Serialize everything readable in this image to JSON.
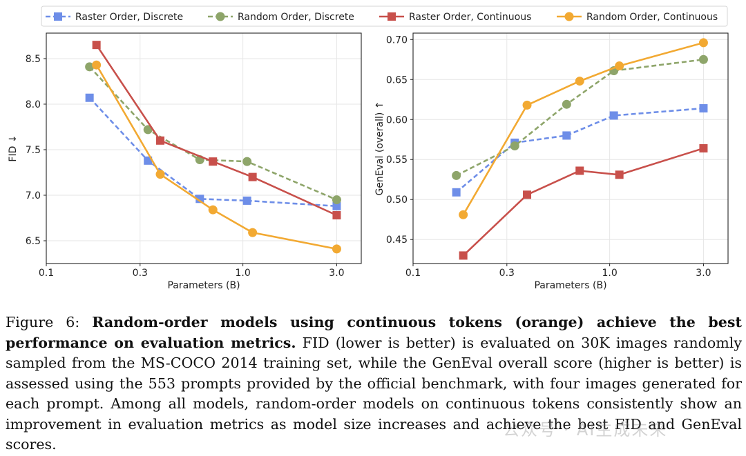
{
  "chart_data": [
    {
      "type": "line",
      "xscale": "log",
      "xlabel": "Parameters (B)",
      "ylabel": "FID ↓",
      "xlim": [
        0.1,
        4.0
      ],
      "ylim": [
        6.25,
        8.78
      ],
      "xticks": [
        0.1,
        0.3,
        1.0,
        3.0
      ],
      "xtick_labels": [
        "0.1",
        "0.3",
        "1.0",
        "3.0"
      ],
      "yticks": [
        6.5,
        7.0,
        7.5,
        8.0,
        8.5
      ],
      "ytick_labels": [
        "6.5",
        "7.0",
        "7.5",
        "8.0",
        "8.5"
      ],
      "grid": true,
      "series": [
        {
          "name": "Raster Order, Discrete",
          "color": "#6e8ee8",
          "dash": "dashed",
          "marker": "square",
          "x": [
            0.166,
            0.329,
            0.604,
            1.05,
            3.0
          ],
          "y": [
            8.07,
            7.38,
            6.96,
            6.94,
            6.88
          ]
        },
        {
          "name": "Random Order, Discrete",
          "color": "#8ea56a",
          "dash": "dashed",
          "marker": "circle",
          "x": [
            0.166,
            0.329,
            0.604,
            1.05,
            3.0
          ],
          "y": [
            8.41,
            7.72,
            7.39,
            7.37,
            6.95
          ]
        },
        {
          "name": "Raster Order, Continuous",
          "color": "#c8504b",
          "dash": "solid",
          "marker": "square",
          "x": [
            0.18,
            0.38,
            0.704,
            1.12,
            3.0
          ],
          "y": [
            8.65,
            7.6,
            7.37,
            7.2,
            6.78
          ]
        },
        {
          "name": "Random Order, Continuous",
          "color": "#f2a932",
          "dash": "solid",
          "marker": "circle",
          "x": [
            0.18,
            0.38,
            0.704,
            1.12,
            3.0
          ],
          "y": [
            8.43,
            7.23,
            6.84,
            6.59,
            6.41
          ]
        }
      ]
    },
    {
      "type": "line",
      "xscale": "log",
      "xlabel": "Parameters (B)",
      "ylabel": "GenEval (overall) ↑",
      "xlim": [
        0.1,
        4.0
      ],
      "ylim": [
        0.42,
        0.708
      ],
      "xticks": [
        0.1,
        0.3,
        1.0,
        3.0
      ],
      "xtick_labels": [
        "0.1",
        "0.3",
        "1.0",
        "3.0"
      ],
      "yticks": [
        0.45,
        0.5,
        0.55,
        0.6,
        0.65,
        0.7
      ],
      "ytick_labels": [
        "0.45",
        "0.50",
        "0.55",
        "0.60",
        "0.65",
        "0.70"
      ],
      "grid": true,
      "series": [
        {
          "name": "Raster Order, Discrete",
          "color": "#6e8ee8",
          "dash": "dashed",
          "marker": "square",
          "x": [
            0.166,
            0.329,
            0.604,
            1.05,
            3.0
          ],
          "y": [
            0.509,
            0.571,
            0.58,
            0.605,
            0.614
          ]
        },
        {
          "name": "Random Order, Discrete",
          "color": "#8ea56a",
          "dash": "dashed",
          "marker": "circle",
          "x": [
            0.166,
            0.329,
            0.604,
            1.05,
            3.0
          ],
          "y": [
            0.53,
            0.567,
            0.619,
            0.661,
            0.675
          ]
        },
        {
          "name": "Raster Order, Continuous",
          "color": "#c8504b",
          "dash": "solid",
          "marker": "square",
          "x": [
            0.18,
            0.38,
            0.704,
            1.12,
            3.0
          ],
          "y": [
            0.43,
            0.506,
            0.536,
            0.531,
            0.564
          ]
        },
        {
          "name": "Random Order, Continuous",
          "color": "#f2a932",
          "dash": "solid",
          "marker": "circle",
          "x": [
            0.18,
            0.38,
            0.704,
            1.12,
            3.0
          ],
          "y": [
            0.481,
            0.618,
            0.648,
            0.667,
            0.696
          ]
        }
      ]
    }
  ],
  "legend": {
    "placement": "top",
    "items": [
      {
        "label": "Raster Order, Discrete",
        "color": "#6e8ee8",
        "dash": "dashed",
        "marker": "square"
      },
      {
        "label": "Random Order, Discrete",
        "color": "#8ea56a",
        "dash": "dashed",
        "marker": "circle"
      },
      {
        "label": "Raster Order, Continuous",
        "color": "#c8504b",
        "dash": "solid",
        "marker": "square"
      },
      {
        "label": "Random Order, Continuous",
        "color": "#f2a932",
        "dash": "solid",
        "marker": "circle"
      }
    ]
  },
  "caption": {
    "figure_label": "Figure 6:",
    "bold_text": "Random-order models using continuous tokens (orange) achieve the best performance on evaluation metrics.",
    "body_text": "FID (lower is better) is evaluated on 30K images randomly sampled from the MS-COCO 2014 training set, while the GenEval overall score (higher is better) is assessed using the 553 prompts provided by the official benchmark, with four images generated for each prompt. Among all models, random-order models on continuous tokens consistently show an improvement in evaluation metrics as model size increases and achieve the best FID and GenEval scores."
  },
  "watermark": {
    "text": "公众号 · AI生成未来"
  }
}
